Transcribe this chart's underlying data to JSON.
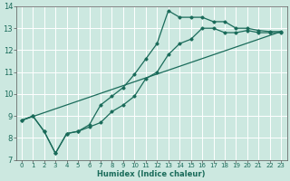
{
  "title": "",
  "xlabel": "Humidex (Indice chaleur)",
  "bg_color": "#cce8e0",
  "grid_color": "#ffffff",
  "line_color": "#1a6b5a",
  "xlim": [
    -0.5,
    23.5
  ],
  "ylim": [
    7,
    14
  ],
  "xticks": [
    0,
    1,
    2,
    3,
    4,
    5,
    6,
    7,
    8,
    9,
    10,
    11,
    12,
    13,
    14,
    15,
    16,
    17,
    18,
    19,
    20,
    21,
    22,
    23
  ],
  "yticks": [
    7,
    8,
    9,
    10,
    11,
    12,
    13,
    14
  ],
  "line1_x": [
    0,
    1,
    2,
    3,
    4,
    5,
    6,
    7,
    8,
    9,
    10,
    11,
    12,
    13,
    14,
    15,
    16,
    17,
    18,
    19,
    20,
    21,
    22,
    23
  ],
  "line1_y": [
    8.8,
    9.0,
    8.3,
    7.3,
    8.2,
    8.3,
    8.5,
    8.7,
    9.2,
    9.5,
    9.9,
    10.7,
    11.0,
    11.8,
    12.3,
    12.5,
    13.0,
    13.0,
    12.8,
    12.8,
    12.9,
    12.8,
    12.8,
    12.8
  ],
  "line2_x": [
    0,
    1,
    2,
    3,
    4,
    5,
    6,
    7,
    8,
    9,
    10,
    11,
    12,
    13,
    14,
    15,
    16,
    17,
    18,
    19,
    20,
    21,
    22,
    23
  ],
  "line2_y": [
    8.8,
    9.0,
    8.3,
    7.3,
    8.2,
    8.3,
    8.6,
    9.5,
    9.9,
    10.3,
    10.9,
    11.6,
    12.3,
    13.8,
    13.5,
    13.5,
    13.5,
    13.3,
    13.3,
    13.0,
    13.0,
    12.9,
    12.85,
    12.85
  ],
  "line3_x": [
    0,
    23
  ],
  "line3_y": [
    8.8,
    12.85
  ]
}
